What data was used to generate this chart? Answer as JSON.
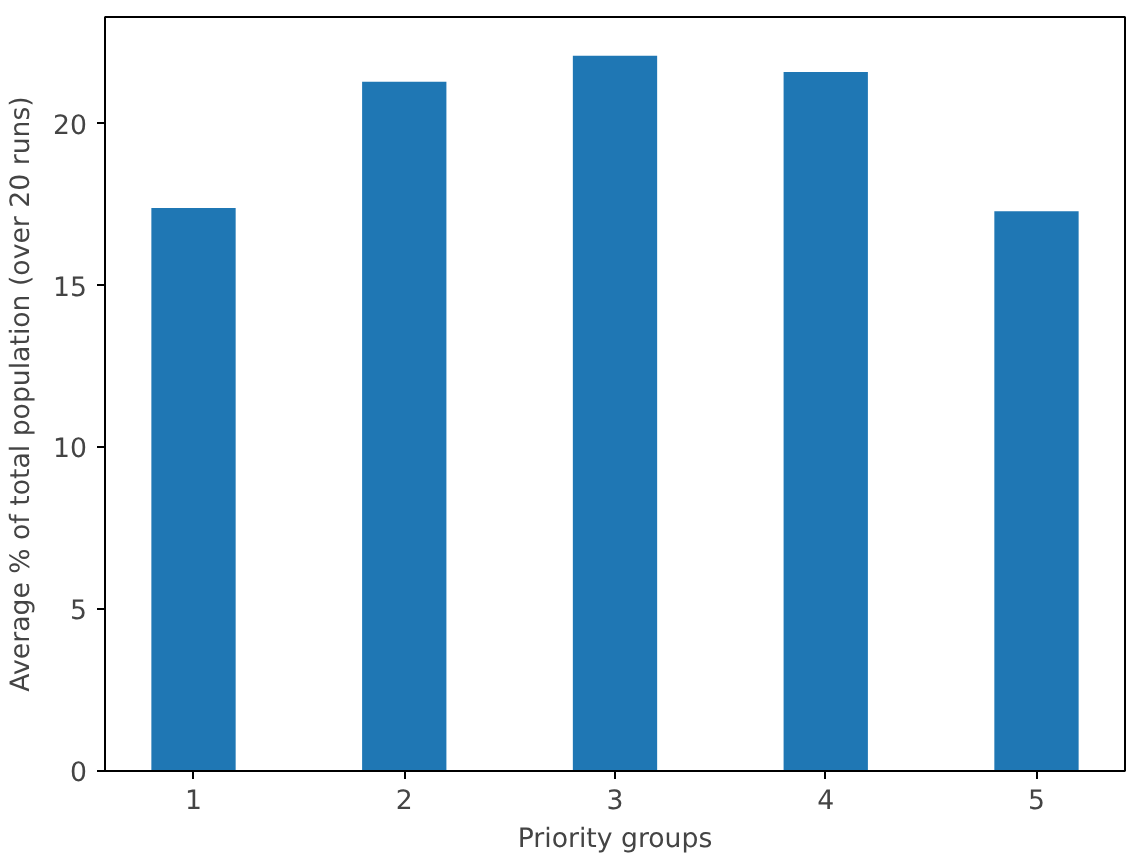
{
  "chart_data": {
    "type": "bar",
    "xlabel": "Priority groups",
    "ylabel": "Average % of total population (over 20 runs)",
    "x": [
      1,
      2,
      3,
      4,
      5
    ],
    "values": [
      17.4,
      21.3,
      22.1,
      21.6,
      17.3
    ],
    "color": "#1f77b4",
    "xlim": [
      0.58,
      5.42
    ],
    "xticks": [
      1,
      2,
      3,
      4,
      5
    ],
    "ylim": [
      0,
      23.3
    ],
    "yticks": [
      0,
      5,
      10,
      15,
      20
    ],
    "grid": false
  }
}
